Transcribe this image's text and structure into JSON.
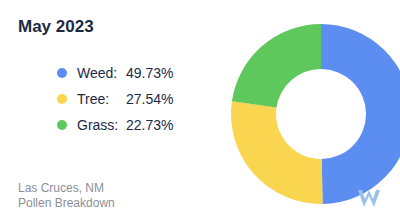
{
  "chart_data": {
    "type": "donut",
    "title": "May 2023",
    "categories": [
      "Weed:",
      "Tree:",
      "Grass:"
    ],
    "values": [
      49.73,
      27.54,
      22.73
    ],
    "value_labels": [
      "49.73%",
      "27.54%",
      "22.73%"
    ],
    "colors": [
      "#5b8ef0",
      "#f9d550",
      "#5fc85c"
    ],
    "legend": "left",
    "annotations": [
      "Las Cruces, NM",
      "Pollen Breakdown"
    ]
  }
}
